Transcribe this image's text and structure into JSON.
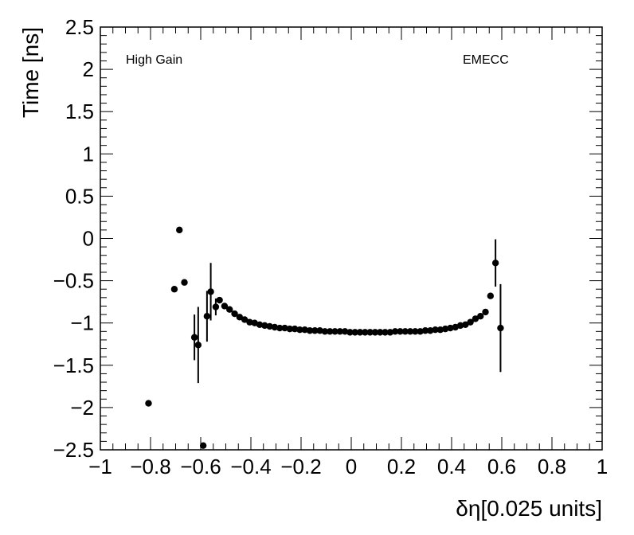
{
  "chart_data": {
    "type": "scatter",
    "xlabel": "δη[0.025 units]",
    "ylabel": "Time [ns]",
    "xlim": [
      -1,
      1
    ],
    "ylim": [
      -2.5,
      2.5
    ],
    "grid": false,
    "legend": "none",
    "marker_color": "#000000",
    "x_ticks": [
      "−1",
      "−0.8",
      "−0.6",
      "−0.4",
      "−0.2",
      "0",
      "0.2",
      "0.4",
      "0.6",
      "0.8",
      "1"
    ],
    "x_tick_values": [
      -1,
      -0.8,
      -0.6,
      -0.4,
      -0.2,
      0,
      0.2,
      0.4,
      0.6,
      0.8,
      1
    ],
    "y_ticks": [
      "−2.5",
      "−2",
      "−1.5",
      "−1",
      "−0.5",
      "0",
      "0.5",
      "1",
      "1.5",
      "2",
      "2.5"
    ],
    "y_tick_values": [
      -2.5,
      -2,
      -1.5,
      -1,
      -0.5,
      0,
      0.5,
      1,
      1.5,
      2,
      2.5
    ],
    "annotations": [
      "High Gain",
      "EMECC"
    ],
    "points": [
      {
        "x": -0.808,
        "y": -1.95,
        "err": 0
      },
      {
        "x": -0.705,
        "y": -0.6,
        "err": 0
      },
      {
        "x": -0.685,
        "y": 0.1,
        "err": 0
      },
      {
        "x": -0.665,
        "y": -0.52,
        "err": 0
      },
      {
        "x": -0.625,
        "y": -1.17,
        "err": 0.27
      },
      {
        "x": -0.61,
        "y": -1.26,
        "err": 0.45
      },
      {
        "x": -0.59,
        "y": -2.45,
        "err": 0
      },
      {
        "x": -0.575,
        "y": -0.92,
        "err": 0.3
      },
      {
        "x": -0.56,
        "y": -0.63,
        "err": 0.34
      },
      {
        "x": -0.54,
        "y": -0.81,
        "err": 0.1
      },
      {
        "x": -0.525,
        "y": -0.73,
        "err": 0.03
      },
      {
        "x": -0.505,
        "y": -0.8,
        "err": 0.02
      },
      {
        "x": -0.485,
        "y": -0.84,
        "err": 0.02
      },
      {
        "x": -0.465,
        "y": -0.89,
        "err": 0
      },
      {
        "x": -0.445,
        "y": -0.93,
        "err": 0
      },
      {
        "x": -0.425,
        "y": -0.96,
        "err": 0
      },
      {
        "x": -0.405,
        "y": -0.99,
        "err": 0
      },
      {
        "x": -0.385,
        "y": -1.0,
        "err": 0
      },
      {
        "x": -0.365,
        "y": -1.02,
        "err": 0
      },
      {
        "x": -0.345,
        "y": -1.03,
        "err": 0
      },
      {
        "x": -0.325,
        "y": -1.04,
        "err": 0
      },
      {
        "x": -0.305,
        "y": -1.05,
        "err": 0
      },
      {
        "x": -0.285,
        "y": -1.06,
        "err": 0
      },
      {
        "x": -0.265,
        "y": -1.06,
        "err": 0
      },
      {
        "x": -0.245,
        "y": -1.07,
        "err": 0
      },
      {
        "x": -0.225,
        "y": -1.07,
        "err": 0
      },
      {
        "x": -0.205,
        "y": -1.08,
        "err": 0
      },
      {
        "x": -0.185,
        "y": -1.08,
        "err": 0
      },
      {
        "x": -0.165,
        "y": -1.09,
        "err": 0
      },
      {
        "x": -0.145,
        "y": -1.09,
        "err": 0
      },
      {
        "x": -0.125,
        "y": -1.09,
        "err": 0
      },
      {
        "x": -0.105,
        "y": -1.1,
        "err": 0
      },
      {
        "x": -0.085,
        "y": -1.1,
        "err": 0
      },
      {
        "x": -0.065,
        "y": -1.1,
        "err": 0
      },
      {
        "x": -0.045,
        "y": -1.1,
        "err": 0
      },
      {
        "x": -0.025,
        "y": -1.1,
        "err": 0
      },
      {
        "x": -0.005,
        "y": -1.11,
        "err": 0
      },
      {
        "x": 0.015,
        "y": -1.11,
        "err": 0
      },
      {
        "x": 0.035,
        "y": -1.11,
        "err": 0
      },
      {
        "x": 0.055,
        "y": -1.11,
        "err": 0
      },
      {
        "x": 0.075,
        "y": -1.11,
        "err": 0
      },
      {
        "x": 0.095,
        "y": -1.11,
        "err": 0
      },
      {
        "x": 0.115,
        "y": -1.11,
        "err": 0
      },
      {
        "x": 0.135,
        "y": -1.11,
        "err": 0
      },
      {
        "x": 0.155,
        "y": -1.11,
        "err": 0
      },
      {
        "x": 0.175,
        "y": -1.1,
        "err": 0
      },
      {
        "x": 0.195,
        "y": -1.1,
        "err": 0
      },
      {
        "x": 0.215,
        "y": -1.1,
        "err": 0
      },
      {
        "x": 0.235,
        "y": -1.1,
        "err": 0
      },
      {
        "x": 0.255,
        "y": -1.1,
        "err": 0
      },
      {
        "x": 0.275,
        "y": -1.1,
        "err": 0
      },
      {
        "x": 0.295,
        "y": -1.09,
        "err": 0
      },
      {
        "x": 0.315,
        "y": -1.09,
        "err": 0
      },
      {
        "x": 0.335,
        "y": -1.08,
        "err": 0
      },
      {
        "x": 0.355,
        "y": -1.08,
        "err": 0
      },
      {
        "x": 0.375,
        "y": -1.07,
        "err": 0
      },
      {
        "x": 0.395,
        "y": -1.06,
        "err": 0
      },
      {
        "x": 0.415,
        "y": -1.05,
        "err": 0
      },
      {
        "x": 0.435,
        "y": -1.03,
        "err": 0
      },
      {
        "x": 0.455,
        "y": -1.02,
        "err": 0
      },
      {
        "x": 0.475,
        "y": -0.99,
        "err": 0
      },
      {
        "x": 0.495,
        "y": -0.95,
        "err": 0
      },
      {
        "x": 0.515,
        "y": -0.92,
        "err": 0
      },
      {
        "x": 0.535,
        "y": -0.87,
        "err": 0
      },
      {
        "x": 0.555,
        "y": -0.68,
        "err": 0
      },
      {
        "x": 0.575,
        "y": -0.29,
        "err": 0.28
      },
      {
        "x": 0.595,
        "y": -1.06,
        "err": 0.52
      }
    ]
  }
}
